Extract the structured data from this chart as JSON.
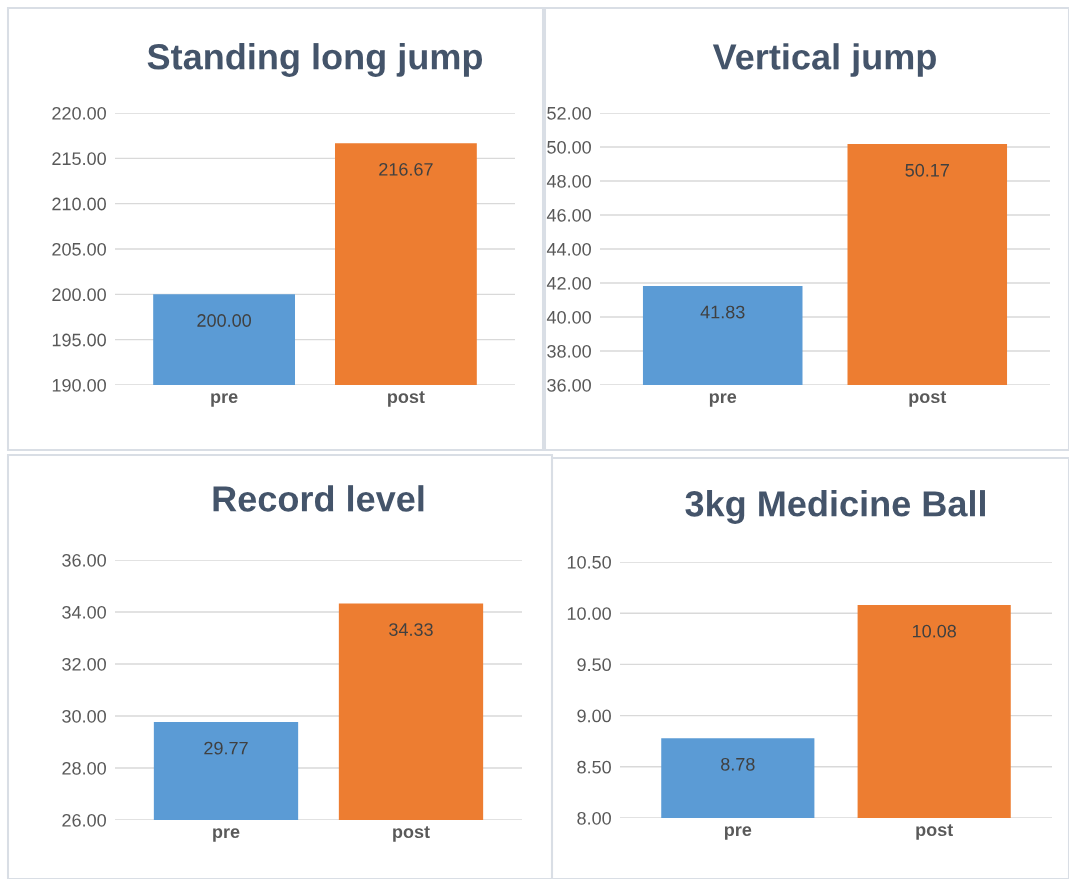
{
  "chart_data": [
    {
      "type": "bar",
      "title": "Standing long jump",
      "categories": [
        "pre",
        "post"
      ],
      "values": [
        200.0,
        216.67
      ],
      "colors": [
        "#5b9bd5",
        "#ed7d31"
      ],
      "ylim": [
        190,
        220
      ],
      "yticks": [
        {
          "value": 190,
          "label": "190.00"
        },
        {
          "value": 195,
          "label": "195.00"
        },
        {
          "value": 200,
          "label": "200.00"
        },
        {
          "value": 205,
          "label": "205.00"
        },
        {
          "value": 210,
          "label": "210.00"
        },
        {
          "value": 215,
          "label": "215.00"
        },
        {
          "value": 220,
          "label": "220.00"
        }
      ],
      "grid": "y",
      "value_labels": [
        "200.00",
        "216.67"
      ]
    },
    {
      "type": "bar",
      "title": "Vertical jump",
      "categories": [
        "pre",
        "post"
      ],
      "values": [
        41.83,
        50.17
      ],
      "colors": [
        "#5b9bd5",
        "#ed7d31"
      ],
      "ylim": [
        36,
        52
      ],
      "yticks": [
        {
          "value": 36,
          "label": "36.00"
        },
        {
          "value": 38,
          "label": "38.00"
        },
        {
          "value": 40,
          "label": "40.00"
        },
        {
          "value": 42,
          "label": "42.00"
        },
        {
          "value": 44,
          "label": "44.00"
        },
        {
          "value": 46,
          "label": "46.00"
        },
        {
          "value": 48,
          "label": "48.00"
        },
        {
          "value": 50,
          "label": "50.00"
        },
        {
          "value": 52,
          "label": "52.00"
        }
      ],
      "grid": "y",
      "value_labels": [
        "41.83",
        "50.17"
      ]
    },
    {
      "type": "bar",
      "title": "Record level",
      "categories": [
        "pre",
        "post"
      ],
      "values": [
        29.77,
        34.33
      ],
      "colors": [
        "#5b9bd5",
        "#ed7d31"
      ],
      "ylim": [
        26,
        36
      ],
      "yticks": [
        {
          "value": 26,
          "label": "26.00"
        },
        {
          "value": 28,
          "label": "28.00"
        },
        {
          "value": 30,
          "label": "30.00"
        },
        {
          "value": 32,
          "label": "32.00"
        },
        {
          "value": 34,
          "label": "34.00"
        },
        {
          "value": 36,
          "label": "36.00"
        }
      ],
      "grid": "y",
      "value_labels": [
        "29.77",
        "34.33"
      ]
    },
    {
      "type": "bar",
      "title": "3kg Medicine Ball",
      "categories": [
        "pre",
        "post"
      ],
      "values": [
        8.78,
        10.08
      ],
      "colors": [
        "#5b9bd5",
        "#ed7d31"
      ],
      "ylim": [
        8,
        10.5
      ],
      "yticks": [
        {
          "value": 8,
          "label": "8.00"
        },
        {
          "value": 8.5,
          "label": "8.50"
        },
        {
          "value": 9,
          "label": "9.00"
        },
        {
          "value": 9.5,
          "label": "9.50"
        },
        {
          "value": 10,
          "label": "10.00"
        },
        {
          "value": 10.5,
          "label": "10.50"
        }
      ],
      "grid": "y",
      "value_labels": [
        "8.78",
        "10.08"
      ]
    }
  ]
}
